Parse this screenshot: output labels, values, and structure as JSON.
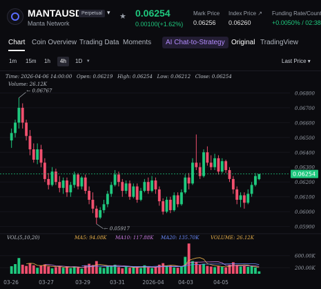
{
  "header": {
    "symbol": "MANTAUSDT",
    "badge": "Perpetual",
    "network": "Manta Network",
    "caret": "▾",
    "star": "★",
    "last_price": "0.06254",
    "change": "0.00100(+1.62%)",
    "stats": [
      {
        "label": "Mark Price",
        "value": "0.06256"
      },
      {
        "label": "Index Price ↗",
        "value": "0.06260"
      },
      {
        "label": "Funding Rate/Countd",
        "value": "+0.0050% / 02:38"
      }
    ]
  },
  "tabs": {
    "items": [
      "Chart",
      "Coin Overview",
      "Trading Data",
      "Moments"
    ],
    "ai": "AI Chat-to-Strategy",
    "views": [
      "Original",
      "TradingView"
    ]
  },
  "intervals": {
    "items": [
      "1m",
      "15m",
      "1h",
      "4h",
      "1D"
    ],
    "active": "4h",
    "caret": "▾",
    "price_type": "Last Price ▾"
  },
  "ohlc": {
    "time": "Time: 2026-04-06 14:00:00",
    "open": "Open: 0.06219",
    "high": "High: 0.06254",
    "low": "Low: 0.06212",
    "close": "Close: 0.06254"
  },
  "volume_readout": "Volume: 26.12K",
  "indicators": {
    "vol": "VOL(5,10,20)",
    "ma5": "MA5: 94.08K",
    "ma10": "MA10: 117.88K",
    "ma20": "MA20: 135.70K",
    "volume": "VOLUME: 26.12K"
  },
  "chart_data": {
    "type": "candlestick",
    "symbol": "MANTAUSDT",
    "interval": "4h",
    "price_axis_ticks": [
      "0.06800",
      "0.06700",
      "0.06600",
      "0.06500",
      "0.06400",
      "0.06300",
      "0.06200",
      "0.06100",
      "0.06000",
      "0.05900"
    ],
    "volume_axis_ticks": [
      "600.00K",
      "200.00K"
    ],
    "date_ticks": [
      "03-26",
      "03-27",
      "03-29",
      "03-31",
      "2026-04",
      "04-03",
      "04-05"
    ],
    "last_price_tag": "0.06254",
    "high_annotation": "0.06767",
    "low_annotation": "0.05917",
    "ylim": [
      0.0587,
      0.0683
    ],
    "candles": [
      {
        "o": 0.0648,
        "h": 0.0656,
        "l": 0.0643,
        "c": 0.0653
      },
      {
        "o": 0.0653,
        "h": 0.0662,
        "l": 0.065,
        "c": 0.066
      },
      {
        "o": 0.066,
        "h": 0.06767,
        "l": 0.0656,
        "c": 0.067
      },
      {
        "o": 0.067,
        "h": 0.0673,
        "l": 0.0656,
        "c": 0.066
      },
      {
        "o": 0.066,
        "h": 0.0662,
        "l": 0.0648,
        "c": 0.0651
      },
      {
        "o": 0.0651,
        "h": 0.0655,
        "l": 0.0638,
        "c": 0.0642
      },
      {
        "o": 0.0642,
        "h": 0.0646,
        "l": 0.0633,
        "c": 0.0635
      },
      {
        "o": 0.0635,
        "h": 0.0646,
        "l": 0.0632,
        "c": 0.0642
      },
      {
        "o": 0.0642,
        "h": 0.0645,
        "l": 0.063,
        "c": 0.0633
      },
      {
        "o": 0.0633,
        "h": 0.0636,
        "l": 0.062,
        "c": 0.0622
      },
      {
        "o": 0.0622,
        "h": 0.0626,
        "l": 0.0615,
        "c": 0.0618
      },
      {
        "o": 0.0618,
        "h": 0.063,
        "l": 0.0617,
        "c": 0.0627
      },
      {
        "o": 0.0627,
        "h": 0.0629,
        "l": 0.0618,
        "c": 0.062
      },
      {
        "o": 0.062,
        "h": 0.0624,
        "l": 0.0613,
        "c": 0.0616
      },
      {
        "o": 0.0616,
        "h": 0.0623,
        "l": 0.0612,
        "c": 0.0621
      },
      {
        "o": 0.0621,
        "h": 0.0623,
        "l": 0.061,
        "c": 0.0613
      },
      {
        "o": 0.0613,
        "h": 0.062,
        "l": 0.061,
        "c": 0.0618
      },
      {
        "o": 0.0618,
        "h": 0.0627,
        "l": 0.0616,
        "c": 0.0625
      },
      {
        "o": 0.0625,
        "h": 0.0626,
        "l": 0.0615,
        "c": 0.0617
      },
      {
        "o": 0.0617,
        "h": 0.0624,
        "l": 0.0615,
        "c": 0.0623
      },
      {
        "o": 0.0623,
        "h": 0.0625,
        "l": 0.0612,
        "c": 0.0614
      },
      {
        "o": 0.0614,
        "h": 0.0617,
        "l": 0.0605,
        "c": 0.0608
      },
      {
        "o": 0.0608,
        "h": 0.0613,
        "l": 0.0599,
        "c": 0.0602
      },
      {
        "o": 0.0602,
        "h": 0.0604,
        "l": 0.05917,
        "c": 0.0596
      },
      {
        "o": 0.0596,
        "h": 0.0603,
        "l": 0.0595,
        "c": 0.0601
      },
      {
        "o": 0.0601,
        "h": 0.0608,
        "l": 0.0599,
        "c": 0.0605
      },
      {
        "o": 0.0605,
        "h": 0.0614,
        "l": 0.0603,
        "c": 0.0612
      },
      {
        "o": 0.0612,
        "h": 0.062,
        "l": 0.061,
        "c": 0.0618
      },
      {
        "o": 0.0618,
        "h": 0.0628,
        "l": 0.0617,
        "c": 0.0625
      },
      {
        "o": 0.0625,
        "h": 0.0627,
        "l": 0.0617,
        "c": 0.062
      },
      {
        "o": 0.062,
        "h": 0.0622,
        "l": 0.061,
        "c": 0.0614
      },
      {
        "o": 0.0614,
        "h": 0.0621,
        "l": 0.0612,
        "c": 0.0619
      },
      {
        "o": 0.0619,
        "h": 0.0621,
        "l": 0.0608,
        "c": 0.061
      },
      {
        "o": 0.061,
        "h": 0.0619,
        "l": 0.0609,
        "c": 0.0617
      },
      {
        "o": 0.0617,
        "h": 0.0619,
        "l": 0.0606,
        "c": 0.0608
      },
      {
        "o": 0.0608,
        "h": 0.0616,
        "l": 0.0607,
        "c": 0.0614
      },
      {
        "o": 0.0614,
        "h": 0.0622,
        "l": 0.0613,
        "c": 0.062
      },
      {
        "o": 0.062,
        "h": 0.0623,
        "l": 0.0612,
        "c": 0.0614
      },
      {
        "o": 0.0614,
        "h": 0.0624,
        "l": 0.0613,
        "c": 0.0621
      },
      {
        "o": 0.0621,
        "h": 0.0623,
        "l": 0.0612,
        "c": 0.0615
      },
      {
        "o": 0.0615,
        "h": 0.0617,
        "l": 0.0604,
        "c": 0.0607
      },
      {
        "o": 0.0607,
        "h": 0.0609,
        "l": 0.0598,
        "c": 0.06
      },
      {
        "o": 0.06,
        "h": 0.061,
        "l": 0.0599,
        "c": 0.0608
      },
      {
        "o": 0.0608,
        "h": 0.061,
        "l": 0.0599,
        "c": 0.0601
      },
      {
        "o": 0.0601,
        "h": 0.0613,
        "l": 0.06,
        "c": 0.0611
      },
      {
        "o": 0.0611,
        "h": 0.0613,
        "l": 0.0603,
        "c": 0.0605
      },
      {
        "o": 0.0605,
        "h": 0.0615,
        "l": 0.0604,
        "c": 0.0613
      },
      {
        "o": 0.0613,
        "h": 0.0625,
        "l": 0.0612,
        "c": 0.0623
      },
      {
        "o": 0.0623,
        "h": 0.0626,
        "l": 0.0615,
        "c": 0.0619
      },
      {
        "o": 0.0619,
        "h": 0.0636,
        "l": 0.0618,
        "c": 0.0633
      },
      {
        "o": 0.0633,
        "h": 0.0652,
        "l": 0.0628,
        "c": 0.063
      },
      {
        "o": 0.063,
        "h": 0.0633,
        "l": 0.0622,
        "c": 0.0624
      },
      {
        "o": 0.0624,
        "h": 0.0642,
        "l": 0.0623,
        "c": 0.064
      },
      {
        "o": 0.064,
        "h": 0.0644,
        "l": 0.0631,
        "c": 0.0633
      },
      {
        "o": 0.0633,
        "h": 0.0638,
        "l": 0.0628,
        "c": 0.063
      },
      {
        "o": 0.063,
        "h": 0.0639,
        "l": 0.0628,
        "c": 0.0636
      },
      {
        "o": 0.0636,
        "h": 0.0638,
        "l": 0.0625,
        "c": 0.0627
      },
      {
        "o": 0.0627,
        "h": 0.0636,
        "l": 0.0626,
        "c": 0.0634
      },
      {
        "o": 0.0634,
        "h": 0.0635,
        "l": 0.0626,
        "c": 0.0628
      },
      {
        "o": 0.0628,
        "h": 0.063,
        "l": 0.062,
        "c": 0.0622
      },
      {
        "o": 0.0622,
        "h": 0.0624,
        "l": 0.0612,
        "c": 0.0615
      },
      {
        "o": 0.0615,
        "h": 0.0617,
        "l": 0.0605,
        "c": 0.0608
      },
      {
        "o": 0.0608,
        "h": 0.0613,
        "l": 0.0603,
        "c": 0.0611
      },
      {
        "o": 0.0611,
        "h": 0.0613,
        "l": 0.0602,
        "c": 0.0606
      },
      {
        "o": 0.0606,
        "h": 0.0615,
        "l": 0.0605,
        "c": 0.0612
      },
      {
        "o": 0.0612,
        "h": 0.062,
        "l": 0.061,
        "c": 0.0618
      },
      {
        "o": 0.0618,
        "h": 0.0626,
        "l": 0.0617,
        "c": 0.0624
      },
      {
        "o": 0.06219,
        "h": 0.06254,
        "l": 0.06212,
        "c": 0.06254
      }
    ],
    "volumes": [
      250,
      320,
      520,
      300,
      260,
      340,
      280,
      200,
      270,
      310,
      240,
      180,
      220,
      260,
      200,
      240,
      190,
      230,
      210,
      170,
      280,
      330,
      290,
      420,
      220,
      190,
      240,
      260,
      300,
      220,
      180,
      240,
      200,
      210,
      230,
      190,
      280,
      210,
      190,
      230,
      300,
      350,
      260,
      270,
      210,
      200,
      240,
      560,
      1000,
      420,
      380,
      300,
      330,
      260,
      240,
      220,
      250,
      230,
      210,
      300,
      380,
      290,
      240,
      260,
      230,
      250,
      210,
      80
    ]
  }
}
